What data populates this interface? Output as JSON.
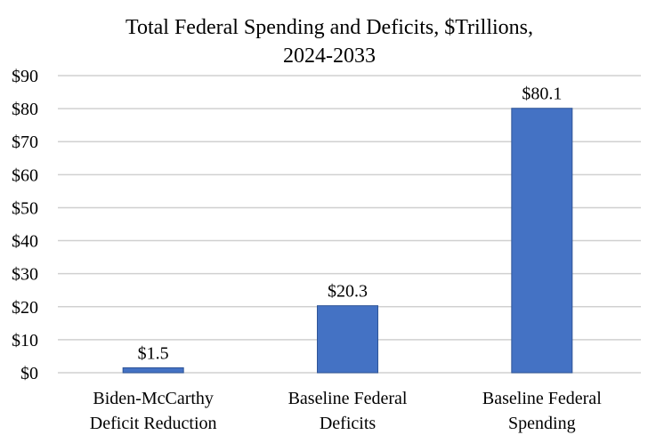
{
  "chart_data": {
    "type": "bar",
    "title_lines": [
      "Total Federal Spending and Deficits, $Trillions,",
      "2024-2033"
    ],
    "title": "Total Federal Spending and Deficits, $Trillions, 2024-2033",
    "xlabel": "",
    "ylabel": "",
    "categories": [
      [
        "Biden-McCarthy",
        "Deficit Reduction"
      ],
      [
        "Baseline Federal",
        "Deficits"
      ],
      [
        "Baseline Federal",
        "Spending"
      ]
    ],
    "values": [
      1.5,
      20.3,
      80.1
    ],
    "data_labels": [
      "$1.5",
      "$20.3",
      "$80.1"
    ],
    "ylim": [
      0,
      90
    ],
    "yticks": [
      0,
      10,
      20,
      30,
      40,
      50,
      60,
      70,
      80,
      90
    ],
    "ytick_labels": [
      "$0",
      "$10",
      "$20",
      "$30",
      "$40",
      "$50",
      "$60",
      "$70",
      "$80",
      "$90"
    ],
    "grid": true,
    "legend": "none",
    "bar_color": "#4472c4",
    "bar_edge_color": "#2f5597",
    "grid_color": "#d0d0d0"
  }
}
